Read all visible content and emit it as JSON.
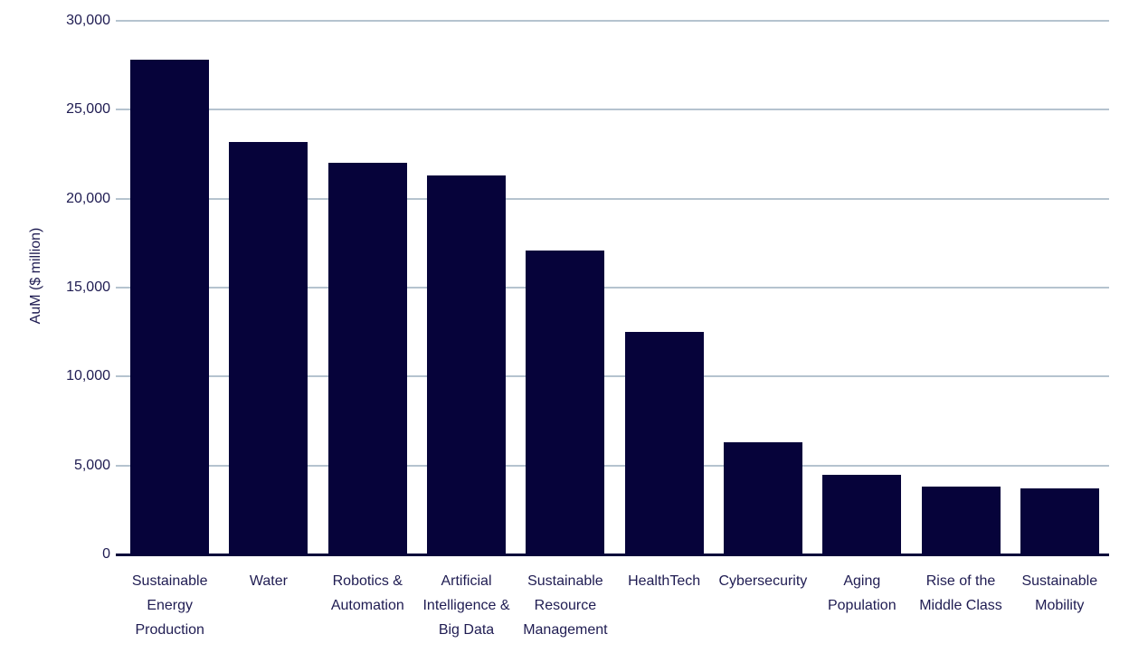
{
  "chart_data": {
    "type": "bar",
    "title": "",
    "xlabel": "",
    "ylabel": "AuM ($ million)",
    "ylim": [
      0,
      30000
    ],
    "grid": "horizontal-gridlines",
    "legend": "none",
    "bar_color": "#06033a",
    "gridline_color": "#b5c3cf",
    "axis_text_color": "#1f1c52",
    "categories": [
      "Sustainable Energy Production",
      "Water",
      "Robotics & Automation",
      "Artificial Intelligence & Big Data",
      "Sustainable Resource Management",
      "HealthTech",
      "Cybersecurity",
      "Aging Population",
      "Rise of the Middle Class",
      "Sustainable Mobility"
    ],
    "category_label_lines": [
      [
        "Sustainable",
        "Energy",
        "Production"
      ],
      [
        "Water"
      ],
      [
        "Robotics &",
        "Automation"
      ],
      [
        "Artificial",
        "Intelligence &",
        "Big Data"
      ],
      [
        "Sustainable",
        "Resource",
        "Management"
      ],
      [
        "HealthTech"
      ],
      [
        "Cybersecurity"
      ],
      [
        "Aging",
        "Population"
      ],
      [
        "Rise of the",
        "Middle Class"
      ],
      [
        "Sustainable",
        "Mobility"
      ]
    ],
    "values": [
      27800,
      23200,
      22000,
      21300,
      17100,
      12500,
      6300,
      4500,
      3800,
      3700
    ],
    "yticks": [
      {
        "value": 0,
        "label": "0"
      },
      {
        "value": 5000,
        "label": "5,000"
      },
      {
        "value": 10000,
        "label": "10,000"
      },
      {
        "value": 15000,
        "label": "15,000"
      },
      {
        "value": 20000,
        "label": "20,000"
      },
      {
        "value": 25000,
        "label": "25,000"
      },
      {
        "value": 30000,
        "label": "30,000"
      }
    ]
  }
}
